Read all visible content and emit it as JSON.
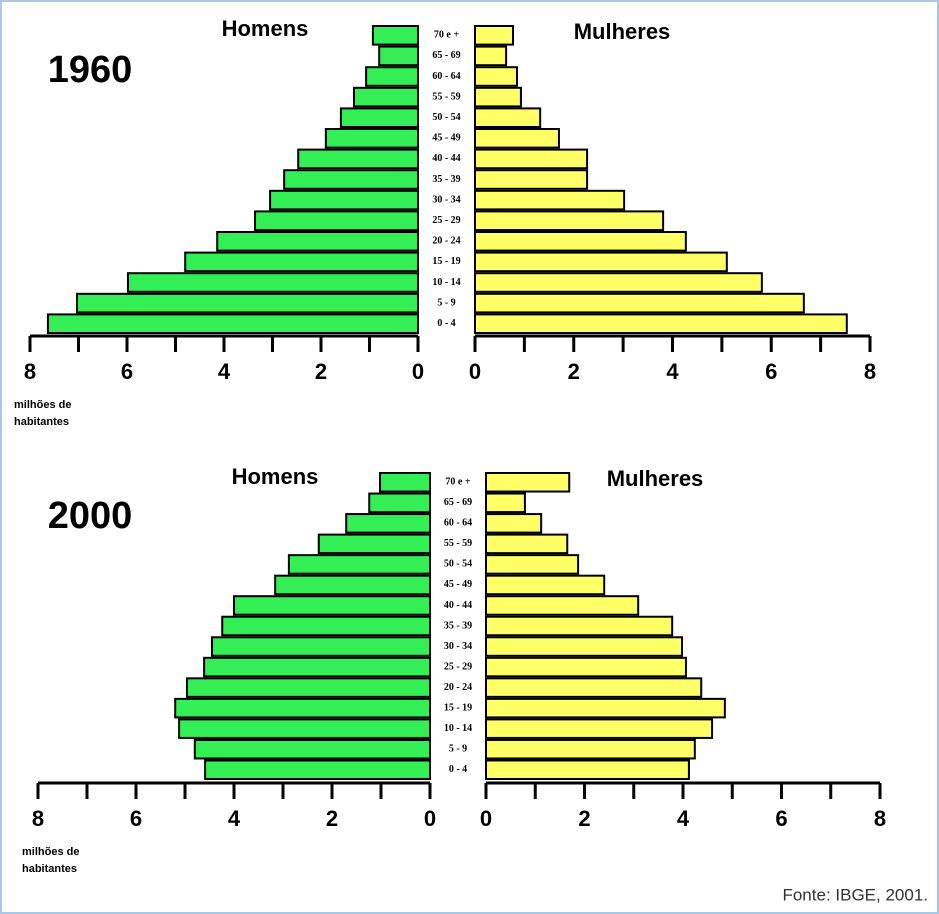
{
  "chart_data": [
    {
      "type": "population_pyramid",
      "title": "1960",
      "categories": [
        "0 - 4",
        "5 - 9",
        "10 - 14",
        "15 - 19",
        "20 - 24",
        "25 - 29",
        "30 - 34",
        "35 - 39",
        "40 - 44",
        "45 - 49",
        "50 - 54",
        "55 - 59",
        "60 - 64",
        "65 - 69",
        "70 e +"
      ],
      "series": [
        {
          "name": "Homens",
          "color": "#33ee55",
          "values": [
            7.63,
            7.03,
            5.98,
            4.8,
            4.14,
            3.36,
            3.05,
            2.76,
            2.47,
            1.9,
            1.59,
            1.32,
            1.07,
            0.8,
            0.93
          ]
        },
        {
          "name": "Mulheres",
          "color": "#ffff66",
          "values": [
            7.53,
            6.66,
            5.81,
            5.1,
            4.27,
            3.81,
            3.02,
            2.27,
            2.27,
            1.7,
            1.32,
            0.93,
            0.85,
            0.63,
            0.77
          ]
        }
      ],
      "xlim": [
        0,
        8
      ],
      "xticks": [
        0,
        2,
        4,
        6,
        8
      ],
      "minor_xticks": [
        1,
        3,
        5,
        7
      ],
      "x_label": [
        "milhões de",
        "habitantes"
      ]
    },
    {
      "type": "population_pyramid",
      "title": "2000",
      "categories": [
        "0 - 4",
        "5 - 9",
        "10 - 14",
        "15 - 19",
        "20 - 24",
        "25 - 29",
        "30 - 34",
        "35 - 39",
        "40 - 44",
        "45 - 49",
        "50 - 54",
        "55 - 59",
        "60 - 64",
        "65 - 69",
        "70 e +"
      ],
      "series": [
        {
          "name": "Homens",
          "color": "#33ee55",
          "values": [
            4.59,
            4.8,
            5.12,
            5.2,
            4.96,
            4.61,
            4.45,
            4.24,
            4.0,
            3.16,
            2.88,
            2.27,
            1.71,
            1.24,
            1.02
          ]
        },
        {
          "name": "Mulheres",
          "color": "#ffff66",
          "values": [
            4.12,
            4.24,
            4.59,
            4.85,
            4.37,
            4.06,
            3.98,
            3.78,
            3.09,
            2.4,
            1.87,
            1.65,
            1.12,
            0.79,
            1.69
          ]
        }
      ],
      "xlim": [
        0,
        8
      ],
      "xticks": [
        0,
        2,
        4,
        6,
        8
      ],
      "minor_xticks": [
        1,
        3,
        5,
        7
      ],
      "x_label": [
        "milhões de",
        "habitantes"
      ]
    }
  ],
  "source": "Fonte: IBGE, 2001."
}
